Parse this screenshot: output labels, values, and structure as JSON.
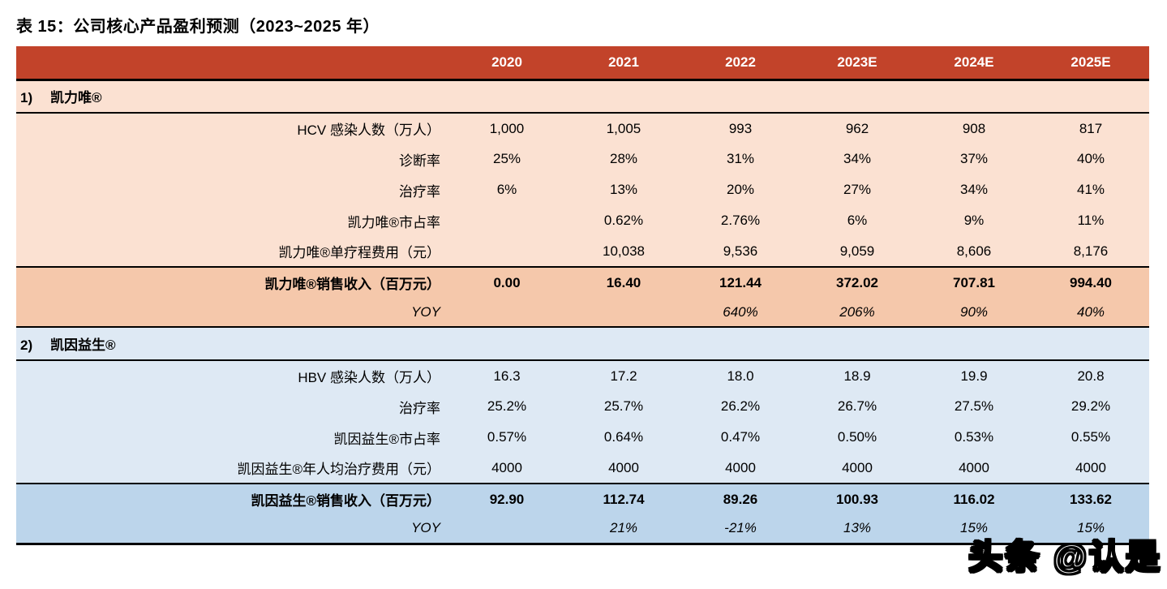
{
  "page": {
    "title": "表 15：公司核心产品盈利预测（2023~2025 年）",
    "watermark": "头条 @认是"
  },
  "colors": {
    "header_bg": "#C2432A",
    "header_text": "#FFFFFF",
    "orange_light": "#FBE1D2",
    "orange_dark": "#F5C8AB",
    "blue_light": "#DEE9F4",
    "blue_dark": "#BCD5EB",
    "border": "#000000"
  },
  "table": {
    "columns": [
      "2020",
      "2021",
      "2022",
      "2023E",
      "2024E",
      "2025E"
    ],
    "sections": [
      {
        "num": "1)",
        "name": "凯力唯®",
        "theme": "orange",
        "rows": [
          {
            "label": "HCV 感染人数（万人）",
            "style": "data",
            "values": [
              "1,000",
              "1,005",
              "993",
              "962",
              "908",
              "817"
            ]
          },
          {
            "label": "诊断率",
            "style": "data",
            "values": [
              "25%",
              "28%",
              "31%",
              "34%",
              "37%",
              "40%"
            ]
          },
          {
            "label": "治疗率",
            "style": "data",
            "values": [
              "6%",
              "13%",
              "20%",
              "27%",
              "34%",
              "41%"
            ]
          },
          {
            "label": "凯力唯®市占率",
            "style": "data",
            "values": [
              "",
              "0.62%",
              "2.76%",
              "6%",
              "9%",
              "11%"
            ]
          },
          {
            "label": "凯力唯®单疗程费用（元）",
            "style": "data",
            "values": [
              "",
              "10,038",
              "9,536",
              "9,059",
              "8,606",
              "8,176"
            ]
          },
          {
            "label": "凯力唯®销售收入（百万元）",
            "style": "total",
            "values": [
              "0.00",
              "16.40",
              "121.44",
              "372.02",
              "707.81",
              "994.40"
            ]
          },
          {
            "label": "YOY",
            "style": "yoy",
            "values": [
              "",
              "",
              "640%",
              "206%",
              "90%",
              "40%"
            ]
          }
        ]
      },
      {
        "num": "2)",
        "name": "凯因益生®",
        "theme": "blue",
        "rows": [
          {
            "label": "HBV 感染人数（万人）",
            "style": "data",
            "values": [
              "16.3",
              "17.2",
              "18.0",
              "18.9",
              "19.9",
              "20.8"
            ]
          },
          {
            "label": "治疗率",
            "style": "data",
            "values": [
              "25.2%",
              "25.7%",
              "26.2%",
              "26.7%",
              "27.5%",
              "29.2%"
            ]
          },
          {
            "label": "凯因益生®市占率",
            "style": "data",
            "values": [
              "0.57%",
              "0.64%",
              "0.47%",
              "0.50%",
              "0.53%",
              "0.55%"
            ]
          },
          {
            "label": "凯因益生®年人均治疗费用（元）",
            "style": "data",
            "values": [
              "4000",
              "4000",
              "4000",
              "4000",
              "4000",
              "4000"
            ]
          },
          {
            "label": "凯因益生®销售收入（百万元）",
            "style": "total",
            "values": [
              "92.90",
              "112.74",
              "89.26",
              "100.93",
              "116.02",
              "133.62"
            ]
          },
          {
            "label": "YOY",
            "style": "yoy",
            "values": [
              "",
              "21%",
              "-21%",
              "13%",
              "15%",
              "15%"
            ]
          }
        ]
      }
    ]
  }
}
